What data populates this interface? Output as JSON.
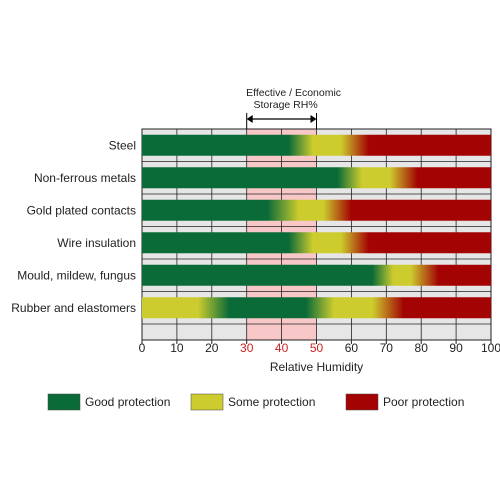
{
  "chart_data": {
    "type": "bar",
    "title": "",
    "xlabel": "Relative Humidity",
    "xlim": [
      0,
      100
    ],
    "xticks": [
      0,
      10,
      20,
      30,
      40,
      50,
      60,
      70,
      80,
      90,
      100
    ],
    "highlighted_ticks": [
      30,
      40,
      50
    ],
    "grid": true,
    "annotation": {
      "line1": "Effective / Economic",
      "line2": "Storage RH%",
      "range": [
        30,
        50
      ]
    },
    "colors": {
      "good": "#0b6b38",
      "some": "#cccc2e",
      "poor": "#a30303",
      "highlight_band": "#f8c7c7",
      "track": "#e6e6e6",
      "highlight_tick": "#cc2222"
    },
    "legend": {
      "position": "bottom",
      "items": [
        {
          "key": "good",
          "label": "Good protection"
        },
        {
          "key": "some",
          "label": "Some protection"
        },
        {
          "key": "poor",
          "label": "Poor protection"
        }
      ]
    },
    "categories": [
      "Steel",
      "Non-ferrous metals",
      "Gold plated contacts",
      "Wire insulation",
      "Mould, mildew, fungus",
      "Rubber and elastomers"
    ],
    "bars": [
      {
        "label": "Steel",
        "stops": [
          [
            "good",
            0
          ],
          [
            "good",
            42
          ],
          [
            "some",
            49
          ],
          [
            "some",
            57
          ],
          [
            "poor",
            65
          ],
          [
            "poor",
            100
          ]
        ]
      },
      {
        "label": "Non-ferrous metals",
        "stops": [
          [
            "good",
            0
          ],
          [
            "good",
            56
          ],
          [
            "some",
            63
          ],
          [
            "some",
            71
          ],
          [
            "poor",
            79
          ],
          [
            "poor",
            100
          ]
        ]
      },
      {
        "label": "Gold plated contacts",
        "stops": [
          [
            "good",
            0
          ],
          [
            "good",
            36
          ],
          [
            "some",
            45
          ],
          [
            "some",
            52
          ],
          [
            "poor",
            60
          ],
          [
            "poor",
            100
          ]
        ]
      },
      {
        "label": "Wire insulation",
        "stops": [
          [
            "good",
            0
          ],
          [
            "good",
            42
          ],
          [
            "some",
            49
          ],
          [
            "some",
            57
          ],
          [
            "poor",
            65
          ],
          [
            "poor",
            100
          ]
        ]
      },
      {
        "label": "Mould, mildew, fungus",
        "stops": [
          [
            "good",
            0
          ],
          [
            "good",
            66
          ],
          [
            "some",
            72
          ],
          [
            "some",
            77
          ],
          [
            "poor",
            85
          ],
          [
            "poor",
            100
          ]
        ]
      },
      {
        "label": "Rubber and elastomers",
        "stops": [
          [
            "some",
            0
          ],
          [
            "some",
            16
          ],
          [
            "good",
            25
          ],
          [
            "good",
            47
          ],
          [
            "some",
            55
          ],
          [
            "some",
            66
          ],
          [
            "poor",
            75
          ],
          [
            "poor",
            100
          ]
        ]
      }
    ]
  }
}
